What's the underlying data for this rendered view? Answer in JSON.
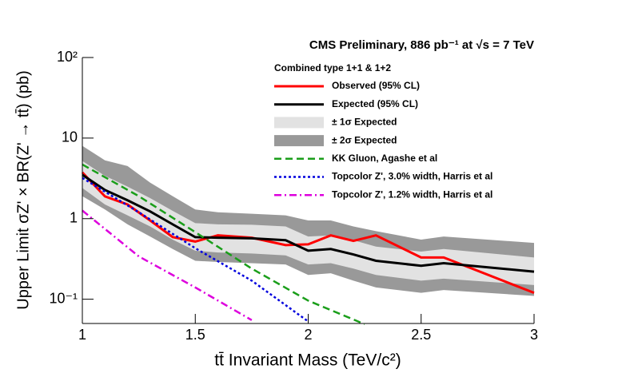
{
  "chart_data": {
    "type": "line",
    "title": "CMS Preliminary, 886 pb⁻¹ at √s = 7 TeV",
    "legend_title": "Combined type 1+1 & 1+2",
    "xlabel": "tt̄ Invariant Mass (TeV/c²)",
    "ylabel": "Upper Limit σZ' × BR(Z' → tt̄) (pb)",
    "log_y": true,
    "legend": "upper right",
    "xlim": [
      1,
      3
    ],
    "xticks": [
      1,
      1.5,
      2,
      2.5,
      3
    ],
    "ylim": [
      0.05,
      100
    ],
    "yticks": [
      {
        "value": 100,
        "label": "10²"
      },
      10,
      1,
      {
        "value": 0.1,
        "label": "10⁻¹"
      }
    ],
    "bands": [
      {
        "name": "± 1σ Expected",
        "color": "#e2e2e2",
        "x": [
          1,
          1.1,
          1.2,
          1.3,
          1.4,
          1.5,
          1.6,
          1.75,
          1.9,
          2.0,
          2.1,
          2.2,
          2.3,
          2.5,
          2.6,
          3.0
        ],
        "low": [
          2.4,
          1.5,
          1.1,
          0.8,
          0.55,
          0.4,
          0.38,
          0.37,
          0.35,
          0.27,
          0.28,
          0.24,
          0.2,
          0.17,
          0.18,
          0.15
        ],
        "high": [
          5.2,
          3.4,
          2.5,
          1.8,
          1.25,
          0.88,
          0.85,
          0.84,
          0.8,
          0.6,
          0.62,
          0.54,
          0.45,
          0.39,
          0.42,
          0.33
        ]
      },
      {
        "name": "± 2σ Expected",
        "color": "#999999",
        "x": [
          1,
          1.1,
          1.2,
          1.3,
          1.4,
          1.5,
          1.6,
          1.75,
          1.9,
          2.0,
          2.1,
          2.2,
          2.3,
          2.5,
          2.6,
          3.0
        ],
        "low": [
          1.9,
          1.3,
          0.85,
          0.6,
          0.42,
          0.3,
          0.29,
          0.28,
          0.27,
          0.2,
          0.21,
          0.17,
          0.14,
          0.12,
          0.13,
          0.11
        ],
        "high": [
          8,
          5.3,
          4.5,
          2.8,
          1.9,
          1.3,
          1.2,
          1.15,
          1.1,
          0.95,
          0.95,
          0.8,
          0.7,
          0.55,
          0.6,
          0.5
        ]
      }
    ],
    "series": [
      {
        "name": "Observed (95% CL)",
        "color": "#ff0000",
        "line_style": "solid",
        "x": [
          1,
          1.1,
          1.2,
          1.3,
          1.4,
          1.5,
          1.6,
          1.75,
          1.9,
          2.0,
          2.1,
          2.2,
          2.3,
          2.5,
          2.6,
          3.0
        ],
        "values": [
          3.75,
          1.89,
          1.5,
          0.95,
          0.59,
          0.52,
          0.62,
          0.58,
          0.47,
          0.48,
          0.62,
          0.53,
          0.62,
          0.33,
          0.33,
          0.12
        ]
      },
      {
        "name": "Expected (95% CL)",
        "color": "#000000",
        "line_style": "solid",
        "x": [
          1,
          1.1,
          1.2,
          1.3,
          1.4,
          1.5,
          1.6,
          1.75,
          1.9,
          2.0,
          2.1,
          2.2,
          2.3,
          2.5,
          2.6,
          3.0
        ],
        "values": [
          3.5,
          2.27,
          1.69,
          1.23,
          0.85,
          0.59,
          0.58,
          0.57,
          0.54,
          0.4,
          0.42,
          0.36,
          0.3,
          0.26,
          0.28,
          0.22
        ]
      },
      {
        "name": "KK Gluon, Agashe et al",
        "color": "#1a9e1a",
        "line_style": "dashed",
        "x": [
          1,
          1.25,
          1.5,
          1.75,
          2.0,
          2.25
        ],
        "values": [
          4.7,
          1.9,
          0.68,
          0.24,
          0.096,
          0.049
        ]
      },
      {
        "name": "Topcolor Z', 3.0% width, Harris et al",
        "color": "#0000dd",
        "line_style": "dotted",
        "x": [
          1,
          1.25,
          1.5,
          1.75,
          2.0
        ],
        "values": [
          3.2,
          1.2,
          0.43,
          0.17,
          0.053
        ]
      },
      {
        "name": "Topcolor Z', 1.2% width, Harris et al",
        "color": "#dd00dd",
        "line_style": "dashdot",
        "x": [
          1,
          1.25,
          1.5,
          1.75
        ],
        "values": [
          1.26,
          0.34,
          0.14,
          0.055
        ]
      }
    ]
  }
}
